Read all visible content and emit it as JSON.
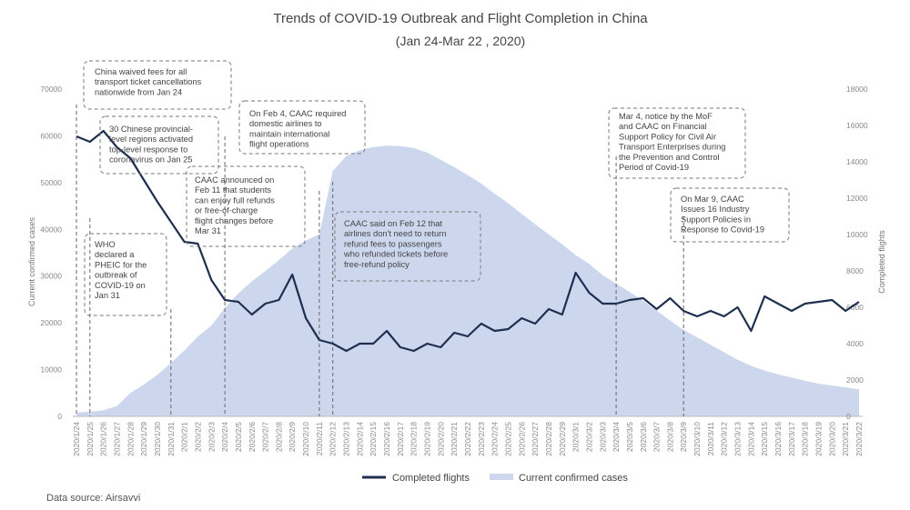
{
  "chart_data": {
    "type": "line",
    "title": "Trends of COVID-19 Outbreak and Flight Completion in China",
    "subtitle": "(Jan 24-Mar 22 , 2020)",
    "ylabel_left": "Current confirmed cases",
    "ylabel_right": "Completed flights",
    "ylim_left": [
      0,
      70000
    ],
    "ylim_right": [
      0,
      18000
    ],
    "yticks_left": [
      "0",
      "10000",
      "20000",
      "30000",
      "40000",
      "50000",
      "60000",
      "70000"
    ],
    "yticks_right": [
      "0",
      "2000",
      "4000",
      "6000",
      "8000",
      "10000",
      "12000",
      "14000",
      "16000",
      "18000"
    ],
    "categories": [
      "2020/1/24",
      "2020/1/25",
      "2020/1/26",
      "2020/1/27",
      "2020/1/28",
      "2020/1/29",
      "2020/1/30",
      "2020/1/31",
      "2020/2/1",
      "2020/2/2",
      "2020/2/3",
      "2020/2/4",
      "2020/2/5",
      "2020/2/6",
      "2020/2/7",
      "2020/2/8",
      "2020/2/9",
      "2020/2/10",
      "2020/2/11",
      "2020/2/12",
      "2020/2/13",
      "2020/2/14",
      "2020/2/15",
      "2020/2/16",
      "2020/2/17",
      "2020/2/18",
      "2020/2/19",
      "2020/2/20",
      "2020/2/21",
      "2020/2/22",
      "2020/2/23",
      "2020/2/24",
      "2020/2/25",
      "2020/2/26",
      "2020/2/27",
      "2020/2/28",
      "2020/2/29",
      "2020/3/1",
      "2020/3/2",
      "2020/3/3",
      "2020/3/4",
      "2020/3/5",
      "2020/3/6",
      "2020/3/7",
      "2020/3/8",
      "2020/3/9",
      "2020/3/10",
      "2020/3/11",
      "2020/3/12",
      "2020/3/13",
      "2020/3/14",
      "2020/3/15",
      "2020/3/16",
      "2020/3/17",
      "2020/3/18",
      "2020/3/19",
      "2020/3/20",
      "2020/3/21",
      "2020/3/22"
    ],
    "series": [
      {
        "name": "Completed flights",
        "axis": "right",
        "color": "#1f2f4f",
        "values": [
          15400,
          15100,
          15700,
          14800,
          14200,
          13000,
          11800,
          10700,
          9600,
          9500,
          7500,
          6400,
          6300,
          5600,
          6200,
          6400,
          7800,
          5400,
          4200,
          4000,
          3600,
          4000,
          4000,
          4700,
          3800,
          3600,
          4000,
          3800,
          4600,
          4400,
          5100,
          4700,
          4800,
          5400,
          5100,
          5900,
          5600,
          7900,
          6800,
          6200,
          6200,
          6400,
          6500,
          5900,
          6500,
          5800,
          5500,
          5800,
          5500,
          6000,
          4700,
          6600,
          6200,
          5800,
          6200,
          6300,
          6400,
          5800,
          6300
        ]
      },
      {
        "name": "Current confirmed cases",
        "axis": "left",
        "color": "#ccd7ee",
        "values": [
          800,
          1000,
          1300,
          2200,
          5000,
          6800,
          8900,
          11400,
          14100,
          17100,
          19400,
          23200,
          26300,
          28900,
          31100,
          33400,
          35900,
          37600,
          38900,
          52500,
          55700,
          56900,
          57600,
          57900,
          57800,
          57400,
          56400,
          54900,
          53300,
          51600,
          49800,
          47600,
          45600,
          43300,
          41100,
          38900,
          36800,
          34500,
          32600,
          30200,
          28400,
          26600,
          24700,
          22600,
          20500,
          18500,
          16900,
          15300,
          13700,
          12100,
          10800,
          9800,
          9000,
          8300,
          7600,
          7000,
          6600,
          6200,
          5800
        ]
      }
    ],
    "legend_position": "bottom-center",
    "grid": false,
    "annotations": [
      {
        "lines": [
          "China waived fees for all",
          "transport ticket cancellations",
          "nationwide from Jan 24"
        ]
      },
      {
        "lines": [
          "30 Chinese provincial-",
          "level regions activated",
          "top-level response to",
          "coronavirus on Jan 25"
        ]
      },
      {
        "lines": [
          "WHO",
          "declared a",
          "PHEIC for the",
          "outbreak of",
          "COVID-19 on",
          "Jan 31"
        ]
      },
      {
        "lines": [
          "On Feb 4, CAAC required",
          "domestic airlines to",
          "maintain international",
          "flight operations"
        ]
      },
      {
        "lines": [
          "CAAC announced on",
          "Feb 11 that students",
          "can enjoy full refunds",
          "or free-of-charge",
          "flight changes before",
          "Mar 31"
        ]
      },
      {
        "lines": [
          "CAAC said on Feb 12 that",
          "airlines don't need to return",
          "refund fees to passengers",
          "who refunded tickets before",
          "free-refund policy"
        ]
      },
      {
        "lines": [
          "Mar 4, notice by the MoF",
          "and CAAC on Financial",
          "Support Policy for Civil Air",
          "Transport Enterprises during",
          "the Prevention and Control",
          "Period of Covid-19"
        ]
      },
      {
        "lines": [
          "On Mar 9, CAAC",
          "Issues 16 Industry",
          "Support Policies in",
          "Response to Covid-19"
        ]
      }
    ]
  },
  "source": "Data source: Airsavvi"
}
